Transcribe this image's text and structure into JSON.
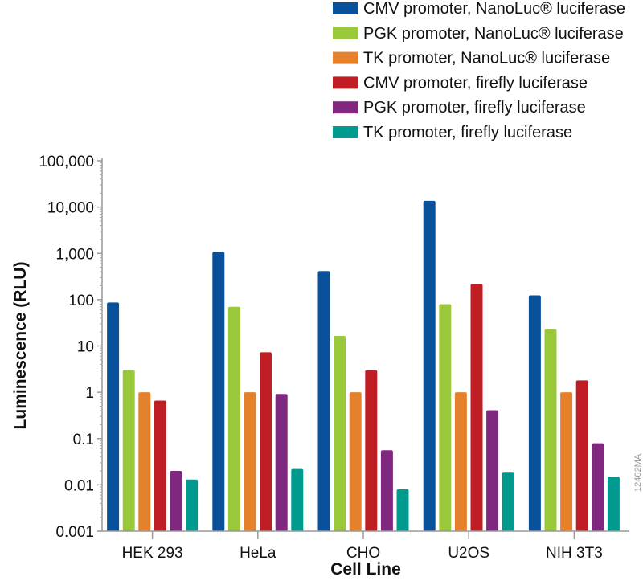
{
  "chart_data": {
    "type": "bar",
    "xlabel": "Cell Line",
    "ylabel": "Luminescence (RLU)",
    "yscale": "log",
    "ylim": [
      0.001,
      100000
    ],
    "yticks": [
      0.001,
      0.01,
      0.1,
      1,
      10,
      100,
      1000,
      10000,
      100000
    ],
    "ytick_labels": [
      "0.001",
      "0.01",
      "0.1",
      "1",
      "10",
      "100",
      "1,000",
      "10,000",
      "100,000"
    ],
    "categories": [
      "HEK 293",
      "HeLa",
      "CHO",
      "U2OS",
      "NIH 3T3"
    ],
    "grid": false,
    "legend_position": "top-right",
    "series": [
      {
        "name": "CMV promoter, NanoLuc® luciferase",
        "color": "#0a519b",
        "values": [
          87,
          1070,
          415,
          13600,
          124
        ]
      },
      {
        "name": "PGK promoter, NanoLuc® luciferase",
        "color": "#99c93b",
        "values": [
          3,
          70,
          16.5,
          80,
          23
        ]
      },
      {
        "name": "TK promoter, NanoLuc® luciferase",
        "color": "#e5812a",
        "values": [
          1,
          1,
          1,
          1,
          1
        ]
      },
      {
        "name": "CMV promoter, firefly luciferase",
        "color": "#c01e25",
        "values": [
          0.66,
          7.3,
          3,
          218,
          1.8
        ]
      },
      {
        "name": "PGK promoter, firefly luciferase",
        "color": "#80287f",
        "values": [
          0.02,
          0.92,
          0.056,
          0.41,
          0.079
        ]
      },
      {
        "name": "TK promoter, firefly luciferase",
        "color": "#009a8e",
        "values": [
          0.013,
          0.022,
          0.008,
          0.019,
          0.015
        ]
      }
    ]
  },
  "figure_code": "12462MA"
}
